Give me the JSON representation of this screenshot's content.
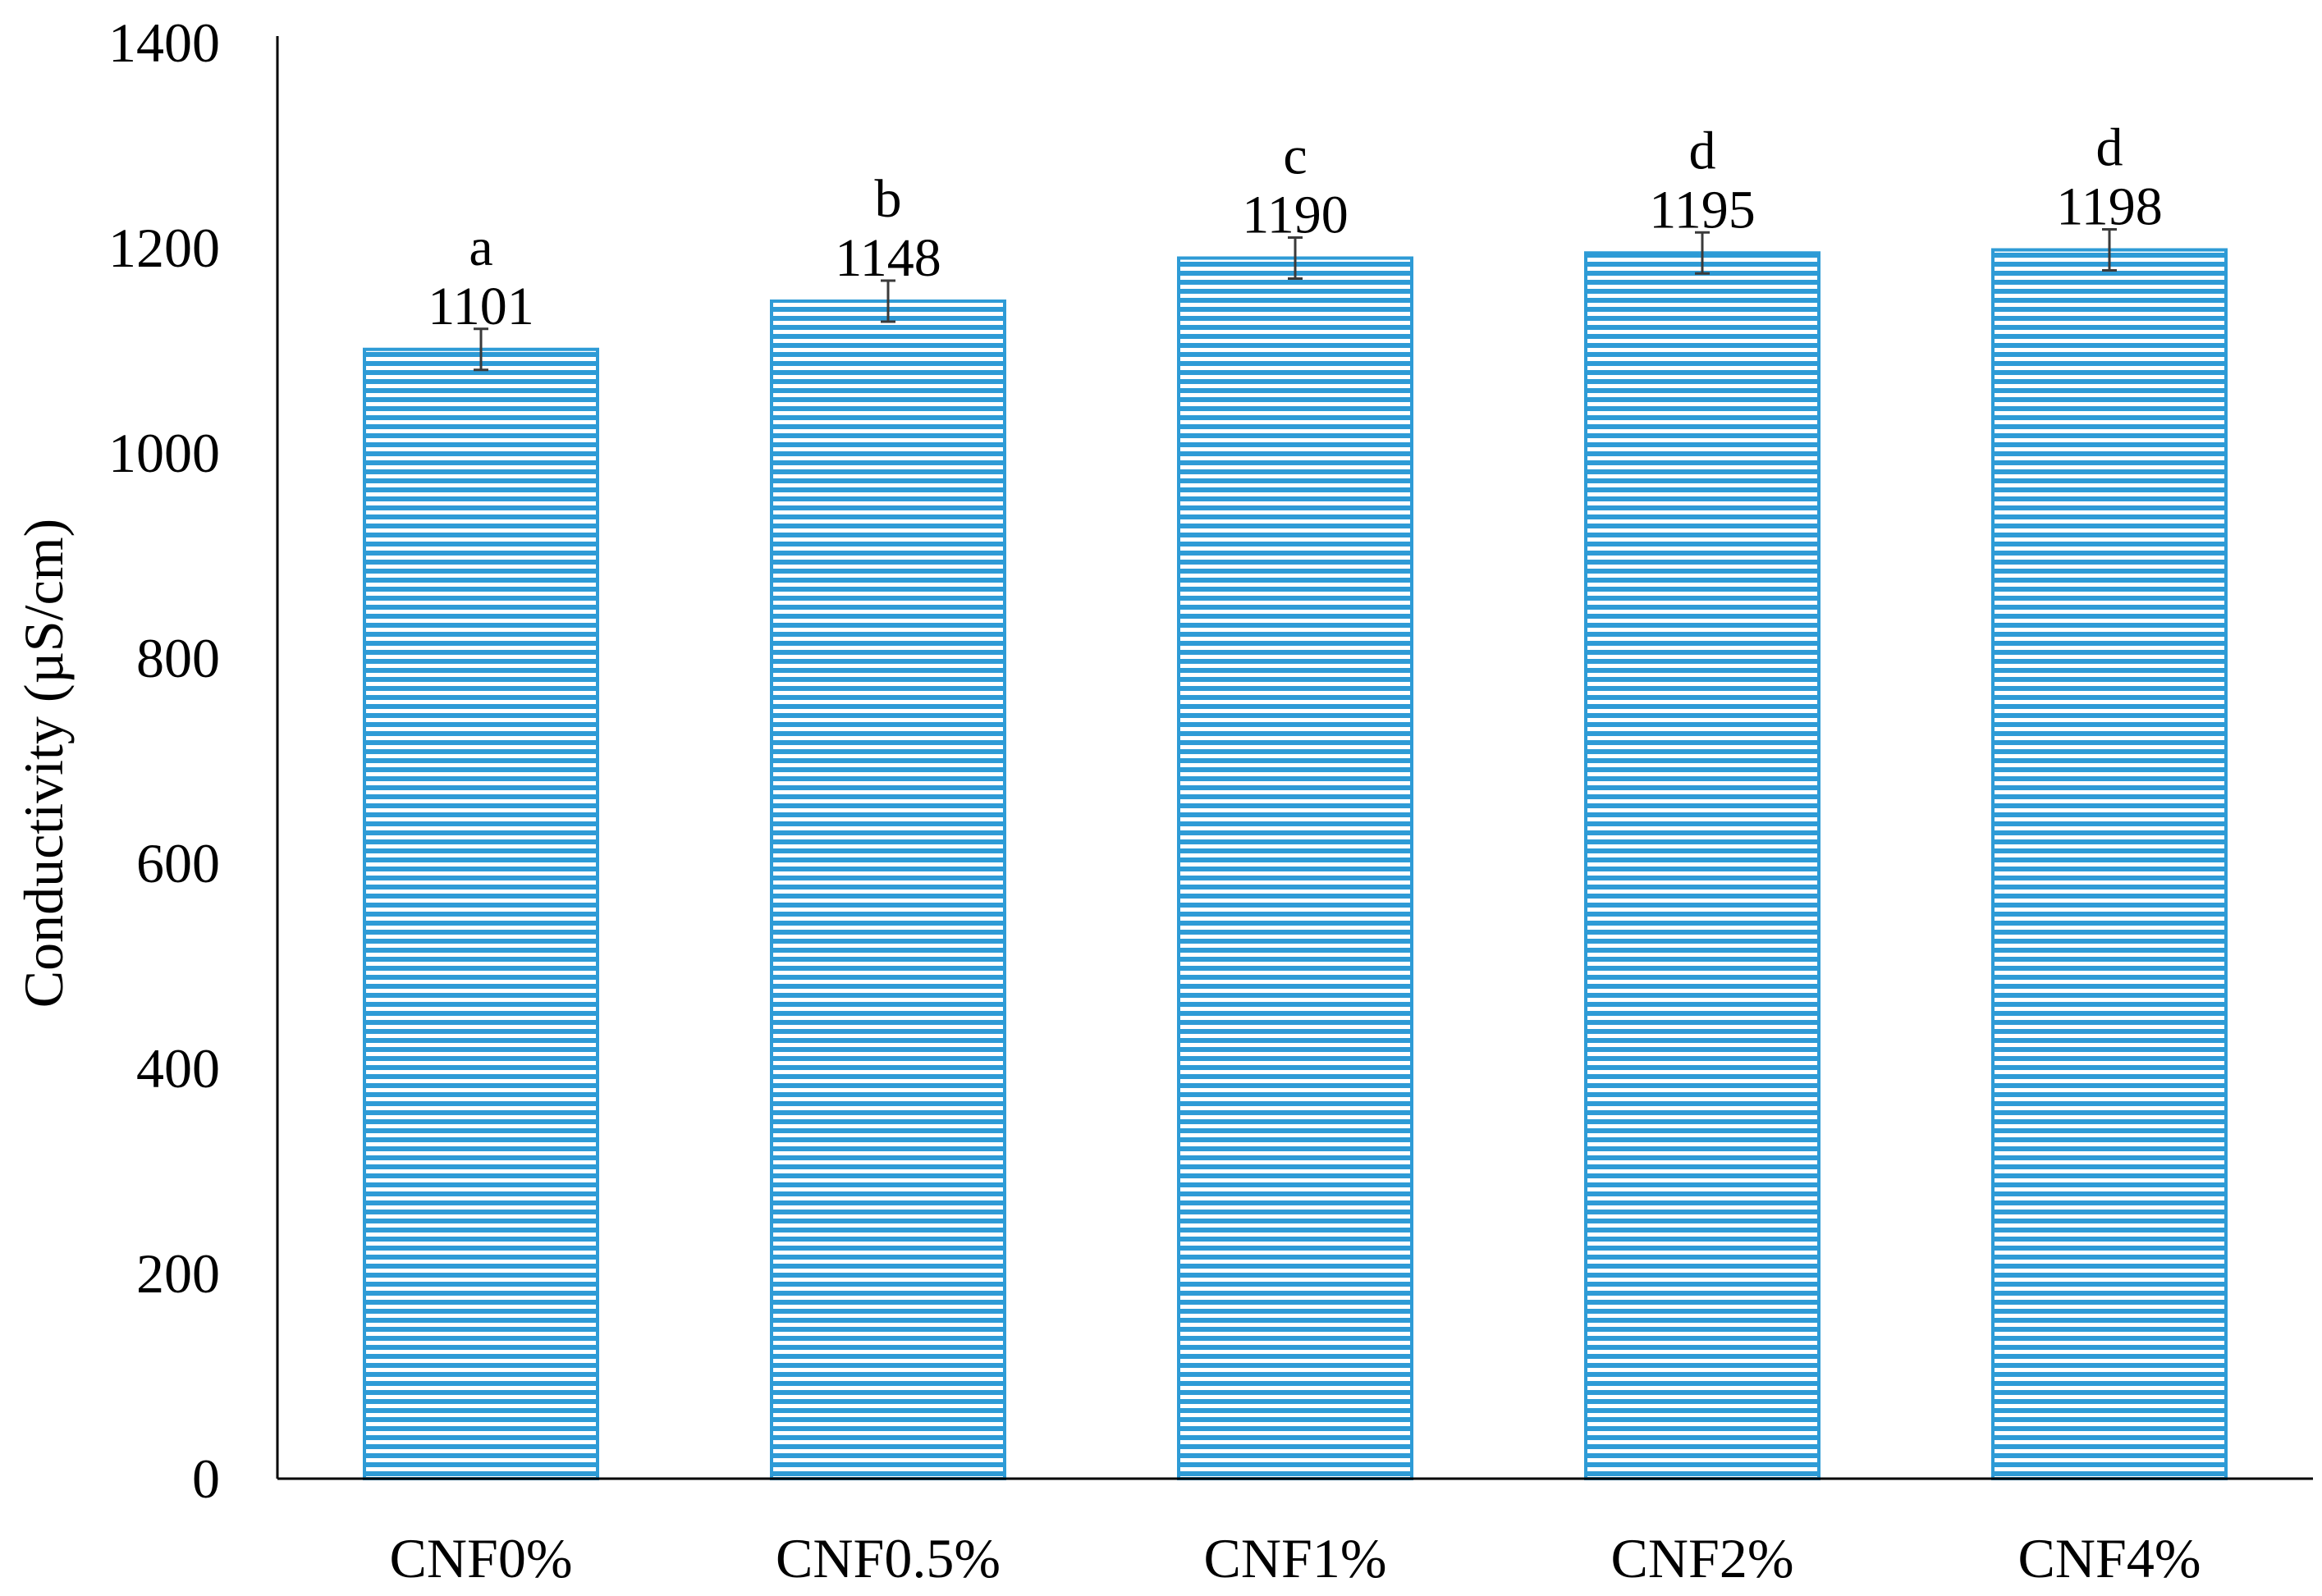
{
  "chart_data": {
    "type": "bar",
    "categories": [
      "CNF0%",
      "CNF0.5%",
      "CNF1%",
      "CNF2%",
      "CNF4%"
    ],
    "series": [
      {
        "values": [
          1101,
          1148,
          1190,
          1195,
          1198
        ],
        "error": [
          20,
          20,
          20,
          20,
          20
        ]
      }
    ],
    "data_labels": [
      "1101",
      "1148",
      "1190",
      "1195",
      "1198"
    ],
    "significance_letters": [
      "a",
      "b",
      "c",
      "d",
      "d"
    ],
    "title": "",
    "xlabel": "",
    "ylabel": "Conductivity (µS/cm)",
    "ylim": [
      0,
      1400
    ],
    "yticks": [
      0,
      200,
      400,
      600,
      800,
      1000,
      1200,
      1400
    ],
    "grid": false,
    "legend": "none",
    "bar_fill_pattern": "horizontal-stripes",
    "bar_color": "#2e9bd6",
    "axis_color": "#000000",
    "errorbar_color": "#3a3a3a"
  }
}
